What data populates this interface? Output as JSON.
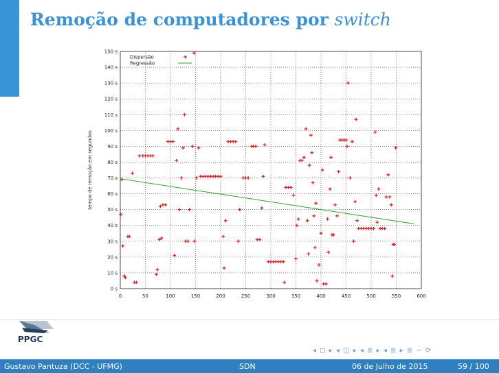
{
  "slide": {
    "title_main": "Remoção de computadores por ",
    "title_emph": "switch"
  },
  "footer": {
    "author": "Gustavo Pantuza (DCC - UFMG)",
    "topic": "SDN",
    "date": "06 de Julho de 2015",
    "page": "59 / 100"
  },
  "logo": {
    "text": "PPGC"
  },
  "nav": {
    "symbols": "◂ ◻ ▸ ◂ ◫ ▸ ◂ ≣ ▸ ◂ ≣ ▸ ≣ ∽ ⟳"
  },
  "colors": {
    "accent": "#3a93d6",
    "points": "#e02020",
    "regression": "#2aa02a",
    "footer": "#2f7fc1"
  },
  "chart_data": {
    "type": "scatter",
    "title": "",
    "xlabel": "",
    "ylabel": "tempo de remoção em segundos",
    "xlim": [
      0,
      600
    ],
    "ylim": [
      0,
      150
    ],
    "x_ticks": [
      0,
      50,
      100,
      150,
      200,
      250,
      300,
      350,
      400,
      450,
      500,
      550,
      600
    ],
    "y_ticks": [
      0,
      10,
      20,
      30,
      40,
      50,
      60,
      70,
      80,
      90,
      100,
      110,
      120,
      130,
      140,
      150
    ],
    "y_tick_suffix": " s",
    "grid": true,
    "legend": "top-left",
    "series": [
      {
        "name": "Dispersão",
        "marker": "+",
        "points": [
          [
            1,
            47
          ],
          [
            3,
            69
          ],
          [
            5,
            27
          ],
          [
            8,
            8
          ],
          [
            10,
            7
          ],
          [
            15,
            33
          ],
          [
            18,
            33
          ],
          [
            24,
            73
          ],
          [
            28,
            4
          ],
          [
            32,
            4
          ],
          [
            38,
            84
          ],
          [
            45,
            84
          ],
          [
            50,
            84
          ],
          [
            55,
            84
          ],
          [
            60,
            84
          ],
          [
            65,
            84
          ],
          [
            72,
            9
          ],
          [
            74,
            12
          ],
          [
            78,
            31
          ],
          [
            80,
            52
          ],
          [
            82,
            32
          ],
          [
            85,
            53
          ],
          [
            90,
            53
          ],
          [
            95,
            93
          ],
          [
            100,
            93
          ],
          [
            105,
            93
          ],
          [
            108,
            21
          ],
          [
            112,
            81
          ],
          [
            115,
            101
          ],
          [
            118,
            50
          ],
          [
            122,
            70
          ],
          [
            125,
            89
          ],
          [
            128,
            110
          ],
          [
            130,
            30
          ],
          [
            135,
            30
          ],
          [
            138,
            50
          ],
          [
            144,
            90
          ],
          [
            147,
            149
          ],
          [
            148,
            30
          ],
          [
            152,
            70
          ],
          [
            156,
            89
          ],
          [
            160,
            71
          ],
          [
            165,
            71
          ],
          [
            170,
            71
          ],
          [
            175,
            71
          ],
          [
            180,
            71
          ],
          [
            185,
            71
          ],
          [
            190,
            71
          ],
          [
            195,
            71
          ],
          [
            200,
            71
          ],
          [
            205,
            33
          ],
          [
            207,
            13
          ],
          [
            210,
            43
          ],
          [
            215,
            93
          ],
          [
            220,
            93
          ],
          [
            225,
            93
          ],
          [
            230,
            93
          ],
          [
            235,
            30
          ],
          [
            238,
            50
          ],
          [
            245,
            70
          ],
          [
            250,
            70
          ],
          [
            255,
            70
          ],
          [
            262,
            90
          ],
          [
            265,
            90
          ],
          [
            270,
            90
          ],
          [
            273,
            31
          ],
          [
            278,
            31
          ],
          [
            282,
            51
          ],
          [
            285,
            71
          ],
          [
            288,
            91
          ],
          [
            295,
            17
          ],
          [
            300,
            17
          ],
          [
            305,
            17
          ],
          [
            310,
            17
          ],
          [
            315,
            17
          ],
          [
            320,
            17
          ],
          [
            325,
            17
          ],
          [
            327,
            4
          ],
          [
            330,
            64
          ],
          [
            335,
            64
          ],
          [
            340,
            64
          ],
          [
            345,
            59
          ],
          [
            350,
            19
          ],
          [
            352,
            40
          ],
          [
            355,
            44
          ],
          [
            358,
            81
          ],
          [
            362,
            81
          ],
          [
            366,
            83
          ],
          [
            370,
            101
          ],
          [
            373,
            43
          ],
          [
            375,
            22
          ],
          [
            377,
            78
          ],
          [
            380,
            97
          ],
          [
            382,
            86
          ],
          [
            384,
            67
          ],
          [
            386,
            46
          ],
          [
            388,
            26
          ],
          [
            390,
            54
          ],
          [
            392,
            5
          ],
          [
            396,
            15
          ],
          [
            400,
            35
          ],
          [
            403,
            75
          ],
          [
            405,
            3
          ],
          [
            410,
            3
          ],
          [
            413,
            44
          ],
          [
            415,
            23
          ],
          [
            418,
            63
          ],
          [
            420,
            83
          ],
          [
            422,
            34
          ],
          [
            425,
            34
          ],
          [
            428,
            53
          ],
          [
            432,
            46
          ],
          [
            435,
            74
          ],
          [
            438,
            94
          ],
          [
            442,
            94
          ],
          [
            446,
            94
          ],
          [
            450,
            94
          ],
          [
            452,
            90
          ],
          [
            454,
            130
          ],
          [
            458,
            70
          ],
          [
            462,
            93
          ],
          [
            465,
            30
          ],
          [
            468,
            55
          ],
          [
            470,
            107
          ],
          [
            472,
            43
          ],
          [
            475,
            38
          ],
          [
            480,
            38
          ],
          [
            485,
            38
          ],
          [
            490,
            38
          ],
          [
            495,
            38
          ],
          [
            500,
            38
          ],
          [
            505,
            38
          ],
          [
            508,
            99
          ],
          [
            510,
            59
          ],
          [
            512,
            42
          ],
          [
            515,
            63
          ],
          [
            518,
            38
          ],
          [
            522,
            38
          ],
          [
            527,
            38
          ],
          [
            530,
            58
          ],
          [
            534,
            72
          ],
          [
            537,
            58
          ],
          [
            540,
            53
          ],
          [
            542,
            8
          ],
          [
            544,
            28
          ],
          [
            546,
            28
          ],
          [
            549,
            89
          ]
        ]
      },
      {
        "name": "Regressão",
        "line": true,
        "points": [
          [
            0,
            69.5
          ],
          [
            585,
            41
          ]
        ]
      }
    ]
  }
}
